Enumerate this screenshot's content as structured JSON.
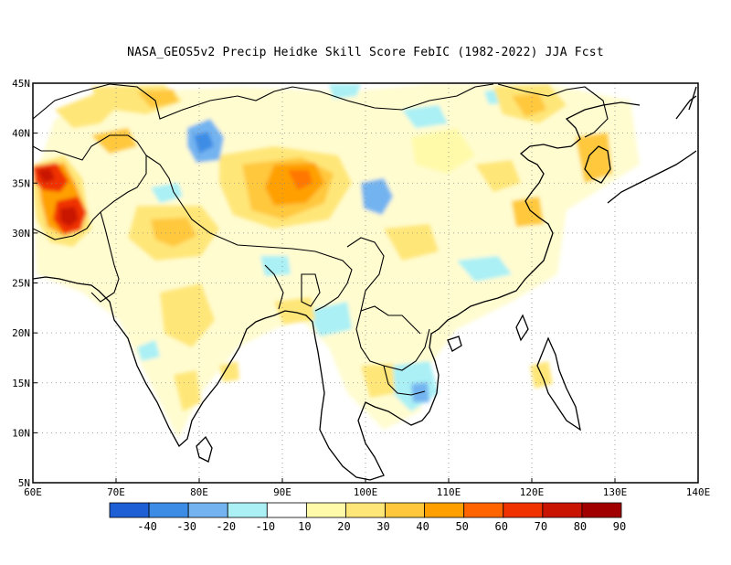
{
  "title": "NASA_GEOS5v2 Precip Heidke Skill Score FebIC (1982-2022) JJA Fcst",
  "map": {
    "lon_range": [
      60,
      140
    ],
    "lat_range": [
      5,
      45
    ],
    "lat_ticks": [
      {
        "value": 45,
        "label": "45N"
      },
      {
        "value": 40,
        "label": "40N"
      },
      {
        "value": 35,
        "label": "35N"
      },
      {
        "value": 30,
        "label": "30N"
      },
      {
        "value": 25,
        "label": "25N"
      },
      {
        "value": 20,
        "label": "20N"
      },
      {
        "value": 15,
        "label": "15N"
      },
      {
        "value": 10,
        "label": "10N"
      },
      {
        "value": 5,
        "label": "5N"
      }
    ],
    "lon_ticks": [
      {
        "value": 60,
        "label": "60E"
      },
      {
        "value": 70,
        "label": "70E"
      },
      {
        "value": 80,
        "label": "80E"
      },
      {
        "value": 90,
        "label": "90E"
      },
      {
        "value": 100,
        "label": "100E"
      },
      {
        "value": 110,
        "label": "110E"
      },
      {
        "value": 120,
        "label": "120E"
      },
      {
        "value": 130,
        "label": "130E"
      },
      {
        "value": 140,
        "label": "140E"
      }
    ],
    "grid": "dotted"
  },
  "colorbar": {
    "colors": [
      "#1e5fd6",
      "#3c8ce6",
      "#73b4f0",
      "#aaf0f5",
      "#ffffff",
      "#fffaaa",
      "#ffe678",
      "#ffc83c",
      "#ffa000",
      "#ff6400",
      "#f03200",
      "#c81400",
      "#a00000"
    ],
    "labels": [
      "-40",
      "-30",
      "-20",
      "-10",
      "10",
      "20",
      "30",
      "40",
      "50",
      "60",
      "70",
      "80",
      "90"
    ]
  },
  "skill_patches": [
    {
      "region": "Afghanistan/Pakistan",
      "lon": 64,
      "lat": 31,
      "value": 80
    },
    {
      "region": "Iran border",
      "lon": 61,
      "lat": 35.5,
      "value": 70
    },
    {
      "region": "Pakistan",
      "lon": 66,
      "lat": 32,
      "value": 60
    },
    {
      "region": "Tibet",
      "lon": 91,
      "lat": 34,
      "value": 40
    },
    {
      "region": "Tibet south",
      "lon": 90,
      "lat": 31,
      "value": 30
    },
    {
      "region": "Northern India",
      "lon": 80,
      "lat": 29,
      "value": 30
    },
    {
      "region": "Tarim",
      "lon": 83,
      "lat": 38,
      "value": -30
    },
    {
      "region": "Qinghai",
      "lon": 100,
      "lat": 33,
      "value": -20
    },
    {
      "region": "Southern China",
      "lon": 111,
      "lat": 25,
      "value": -10
    },
    {
      "region": "Cambodia",
      "lon": 105,
      "lat": 13,
      "value": -10
    },
    {
      "region": "Northern China",
      "lon": 117,
      "lat": 42,
      "value": 30
    },
    {
      "region": "Central China",
      "lon": 113,
      "lat": 30,
      "value": 20
    }
  ]
}
